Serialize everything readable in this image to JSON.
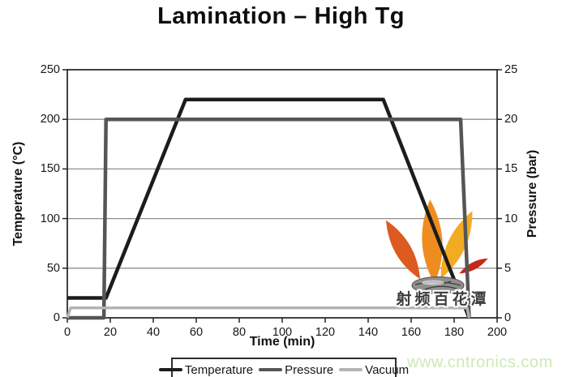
{
  "chart_data": {
    "type": "line",
    "title": "Lamination – High Tg",
    "xlabel": "Time (min)",
    "ylabel_left": "Temperature (°C)",
    "ylabel_right": "Pressure (bar)",
    "xlim": [
      0,
      200
    ],
    "ylim_left": [
      0,
      250
    ],
    "ylim_right": [
      0,
      25
    ],
    "x_ticks": [
      0,
      20,
      40,
      60,
      80,
      100,
      120,
      140,
      160,
      180,
      200
    ],
    "y_left_ticks": [
      0,
      50,
      100,
      150,
      200,
      250
    ],
    "y_right_ticks": [
      0,
      5,
      10,
      15,
      20,
      25
    ],
    "grid": "horizontal-only",
    "legend_position": "bottom-center",
    "series": [
      {
        "name": "Temperature",
        "axis": "left",
        "unit": "°C",
        "color": "#1c1c1c",
        "stroke_width": 4.5,
        "points": [
          [
            0,
            20
          ],
          [
            18,
            20
          ],
          [
            55,
            220
          ],
          [
            147,
            220
          ],
          [
            187,
            0
          ]
        ]
      },
      {
        "name": "Pressure",
        "axis": "right",
        "unit": "bar",
        "color": "#555555",
        "stroke_width": 4.5,
        "points": [
          [
            0,
            0
          ],
          [
            17,
            0
          ],
          [
            18,
            20
          ],
          [
            183,
            20
          ],
          [
            187,
            0
          ]
        ]
      },
      {
        "name": "Vacuum",
        "axis": "right",
        "unit": "bar",
        "color": "#b4b4b4",
        "stroke_width": 3.5,
        "points": [
          [
            0,
            0
          ],
          [
            1.5,
            1
          ],
          [
            186,
            1
          ],
          [
            187,
            0
          ]
        ]
      }
    ]
  },
  "watermark": {
    "caption": "射频百花潭",
    "site": "www.cntronics.com",
    "site_color": "#cde9b5",
    "flame_colors": {
      "left_petal": "#dd5a20",
      "middle_petal": "#ef8c20",
      "right_petal": "#f3ab24",
      "bottom_petal": "#c62818",
      "stone": "#8f8f8f"
    }
  }
}
